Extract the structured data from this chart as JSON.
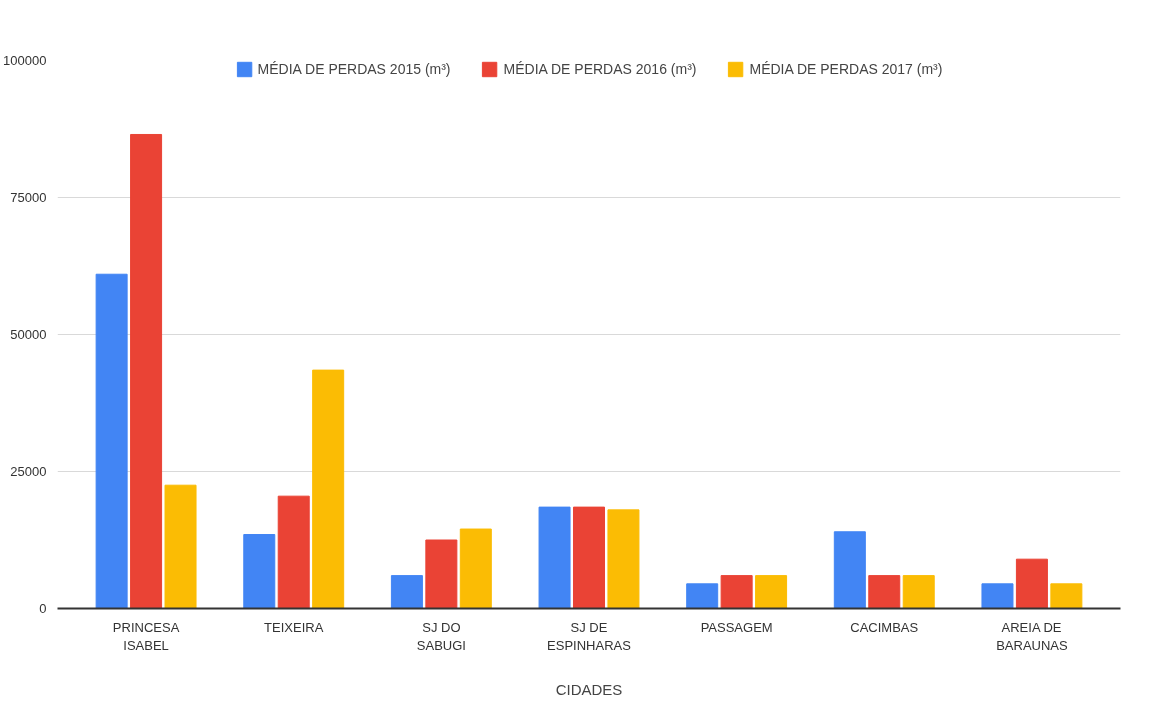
{
  "chart_data": {
    "type": "bar",
    "xlabel": "CIDADES",
    "categories": [
      "PRINCESA ISABEL",
      "TEIXEIRA",
      "SJ DO SABUGI",
      "SJ DE ESPINHARAS",
      "PASSAGEM",
      "CACIMBAS",
      "AREIA DE BARAUNAS"
    ],
    "series": [
      {
        "name": "MÉDIA DE PERDAS 2015 (m³)",
        "color": "#4285f4",
        "values": [
          61000,
          13500,
          6000,
          18500,
          4500,
          14000,
          4500
        ]
      },
      {
        "name": "MÉDIA DE PERDAS 2016 (m³)",
        "color": "#ea4335",
        "values": [
          86500,
          20500,
          12500,
          18500,
          6000,
          6000,
          9000
        ]
      },
      {
        "name": "MÉDIA DE PERDAS 2017 (m³)",
        "color": "#fbbc04",
        "values": [
          22500,
          43500,
          14500,
          18000,
          6000,
          6000,
          4500
        ]
      }
    ],
    "ylim": [
      0,
      100000
    ],
    "yticks": [
      0,
      25000,
      50000,
      75000,
      100000
    ],
    "grid": "y",
    "legend": "top"
  }
}
